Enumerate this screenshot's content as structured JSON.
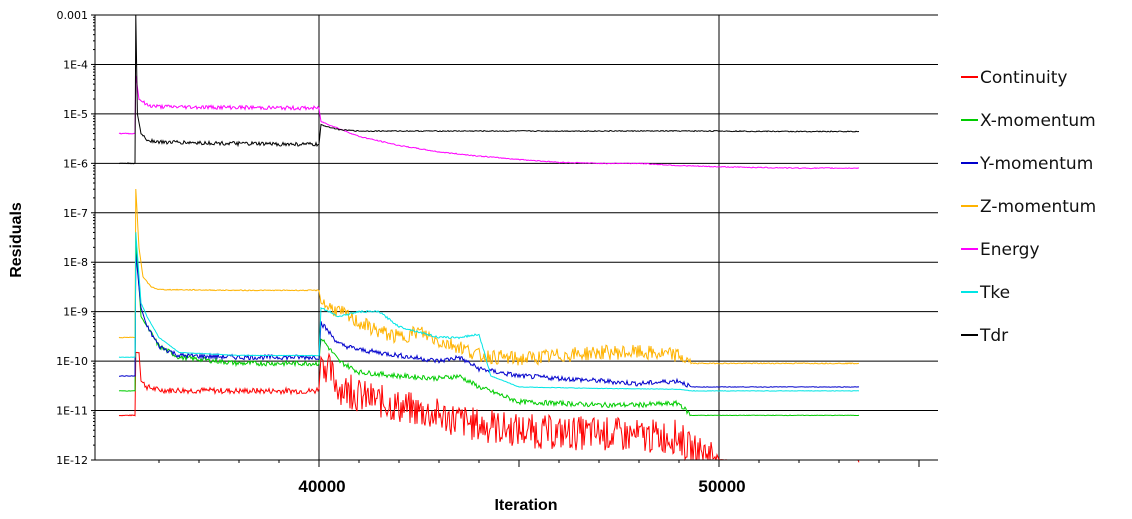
{
  "chart_data": {
    "type": "line",
    "xlabel": "Iteration",
    "ylabel": "Residuals",
    "y_scale": "log",
    "ylim": [
      1e-12,
      0.001
    ],
    "xlim": [
      35000,
      55000
    ],
    "x_ticks": [
      40000,
      50000
    ],
    "x_tick_labels": [
      "40000",
      "50000"
    ],
    "y_ticks": [
      0.001,
      0.0001,
      1e-05,
      1e-06,
      1e-07,
      1e-08,
      1e-09,
      1e-10,
      1e-11,
      1e-12
    ],
    "y_tick_labels": [
      "0.001",
      "1E-4",
      "1E-5",
      "1E-6",
      "1E-7",
      "1E-8",
      "1E-9",
      "1E-10",
      "1E-11",
      "1E-12"
    ],
    "grid": "horizontal at decades; vertical at 40000 and 50000",
    "legend_position": "right",
    "series": [
      {
        "name": "Continuity",
        "color": "#ff0000",
        "x": [
          35000,
          35400,
          35420,
          35500,
          35550,
          35700,
          36000,
          38000,
          39900,
          40000,
          40050,
          40500,
          41000,
          42000,
          43000,
          44000,
          45000,
          46000,
          47000,
          48000,
          49000,
          49300,
          49950,
          50000,
          52000,
          53500
        ],
        "y": [
          8e-12,
          8e-12,
          1.5e-10,
          1.5e-10,
          4e-11,
          3e-11,
          2.6e-11,
          2.5e-11,
          2.5e-11,
          2.8e-11,
          1.2e-10,
          3e-11,
          2e-11,
          1.2e-11,
          8e-12,
          5e-12,
          4e-12,
          3.5e-12,
          3.5e-12,
          3e-12,
          3e-12,
          1.5e-12,
          1.3e-12,
          1e-12,
          9e-13,
          9e-13
        ]
      },
      {
        "name": "X-momentum",
        "color": "#00cc00",
        "x": [
          35000,
          35400,
          35420,
          35550,
          35700,
          36000,
          36500,
          38000,
          40000,
          40050,
          40500,
          41000,
          42000,
          43000,
          43500,
          44000,
          45000,
          46000,
          47000,
          48000,
          49000,
          49300,
          50000,
          53500
        ],
        "y": [
          2.5e-11,
          2.5e-11,
          3e-08,
          8e-10,
          5e-10,
          2e-10,
          1.2e-10,
          9e-11,
          9e-11,
          3e-10,
          1e-10,
          6e-11,
          5e-11,
          4.5e-11,
          5e-11,
          3e-11,
          1.5e-11,
          1.4e-11,
          1.3e-11,
          1.3e-11,
          1.4e-11,
          8e-12,
          8e-12,
          8e-12
        ]
      },
      {
        "name": "Y-momentum",
        "color": "#0000cc",
        "x": [
          35000,
          35400,
          35420,
          35550,
          35700,
          36000,
          36500,
          38000,
          40000,
          40050,
          40500,
          41000,
          42000,
          43000,
          43500,
          44000,
          45000,
          46000,
          47000,
          48000,
          49000,
          49300,
          50000,
          53500
        ],
        "y": [
          5e-11,
          5e-11,
          1.5e-08,
          1.2e-09,
          5e-10,
          2e-10,
          1.3e-10,
          1.2e-10,
          1.2e-10,
          6e-10,
          2.2e-10,
          1.7e-10,
          1.3e-10,
          1e-10,
          1.2e-10,
          7e-11,
          5e-11,
          4.5e-11,
          4e-11,
          3.5e-11,
          4e-11,
          3e-11,
          3e-11,
          3e-11
        ]
      },
      {
        "name": "Z-momentum",
        "color": "#ffb300",
        "x": [
          35000,
          35400,
          35420,
          35500,
          35600,
          35800,
          36000,
          38000,
          40000,
          40050,
          40500,
          41000,
          41500,
          42000,
          42500,
          43000,
          43500,
          44000,
          45000,
          46000,
          47000,
          48000,
          49000,
          49300,
          50000,
          53500
        ],
        "y": [
          3e-10,
          3e-10,
          3e-07,
          2e-08,
          5e-09,
          3.2e-09,
          2.8e-09,
          2.7e-09,
          2.7e-09,
          1.5e-09,
          1e-09,
          6e-10,
          4e-10,
          3e-10,
          4e-10,
          2.5e-10,
          2e-10,
          1.3e-10,
          1.1e-10,
          1.3e-10,
          1.5e-10,
          1.5e-10,
          1.3e-10,
          9e-11,
          9e-11,
          9e-11
        ]
      },
      {
        "name": "Energy",
        "color": "#ff00ff",
        "x": [
          35000,
          35400,
          35420,
          35500,
          35700,
          36000,
          38000,
          40000,
          40050,
          41000,
          42000,
          43000,
          44000,
          45000,
          46000,
          47000,
          48000,
          49000,
          50000,
          52000,
          53500
        ],
        "y": [
          4e-06,
          4e-06,
          6e-05,
          2e-05,
          1.5e-05,
          1.4e-05,
          1.35e-05,
          1.3e-05,
          7e-06,
          3.5e-06,
          2.3e-06,
          1.7e-06,
          1.4e-06,
          1.2e-06,
          1.05e-06,
          1e-06,
          1e-06,
          9e-07,
          8.5e-07,
          8e-07,
          8e-07
        ]
      },
      {
        "name": "Tke",
        "color": "#00e5e5",
        "x": [
          35000,
          35400,
          35420,
          35550,
          35700,
          36000,
          36500,
          38000,
          40000,
          40050,
          40500,
          41000,
          41500,
          42000,
          43000,
          43500,
          44000,
          44300,
          45000,
          47000,
          49000,
          49300,
          50000,
          53500
        ],
        "y": [
          1.2e-10,
          1.2e-10,
          4e-08,
          1.5e-09,
          8e-10,
          3e-10,
          1.5e-10,
          1.3e-10,
          1.3e-10,
          1.2e-09,
          8e-10,
          1e-09,
          1e-09,
          5e-10,
          3e-10,
          3e-10,
          3.5e-10,
          5e-11,
          3e-11,
          2.8e-11,
          2.7e-11,
          2.5e-11,
          2.5e-11,
          2.5e-11
        ]
      },
      {
        "name": "Tdr",
        "color": "#000000",
        "x": [
          35000,
          35400,
          35420,
          35460,
          35550,
          35700,
          36000,
          38000,
          40000,
          40050,
          40500,
          41000,
          42000,
          44000,
          46000,
          48000,
          50000,
          52000,
          53500
        ],
        "y": [
          1e-06,
          1e-06,
          0.001,
          1e-05,
          4e-06,
          3e-06,
          2.7e-06,
          2.5e-06,
          2.4e-06,
          6e-06,
          4.8e-06,
          4.5e-06,
          4.5e-06,
          4.5e-06,
          4.5e-06,
          4.5e-06,
          4.5e-06,
          4.4e-06,
          4.4e-06
        ]
      }
    ]
  }
}
